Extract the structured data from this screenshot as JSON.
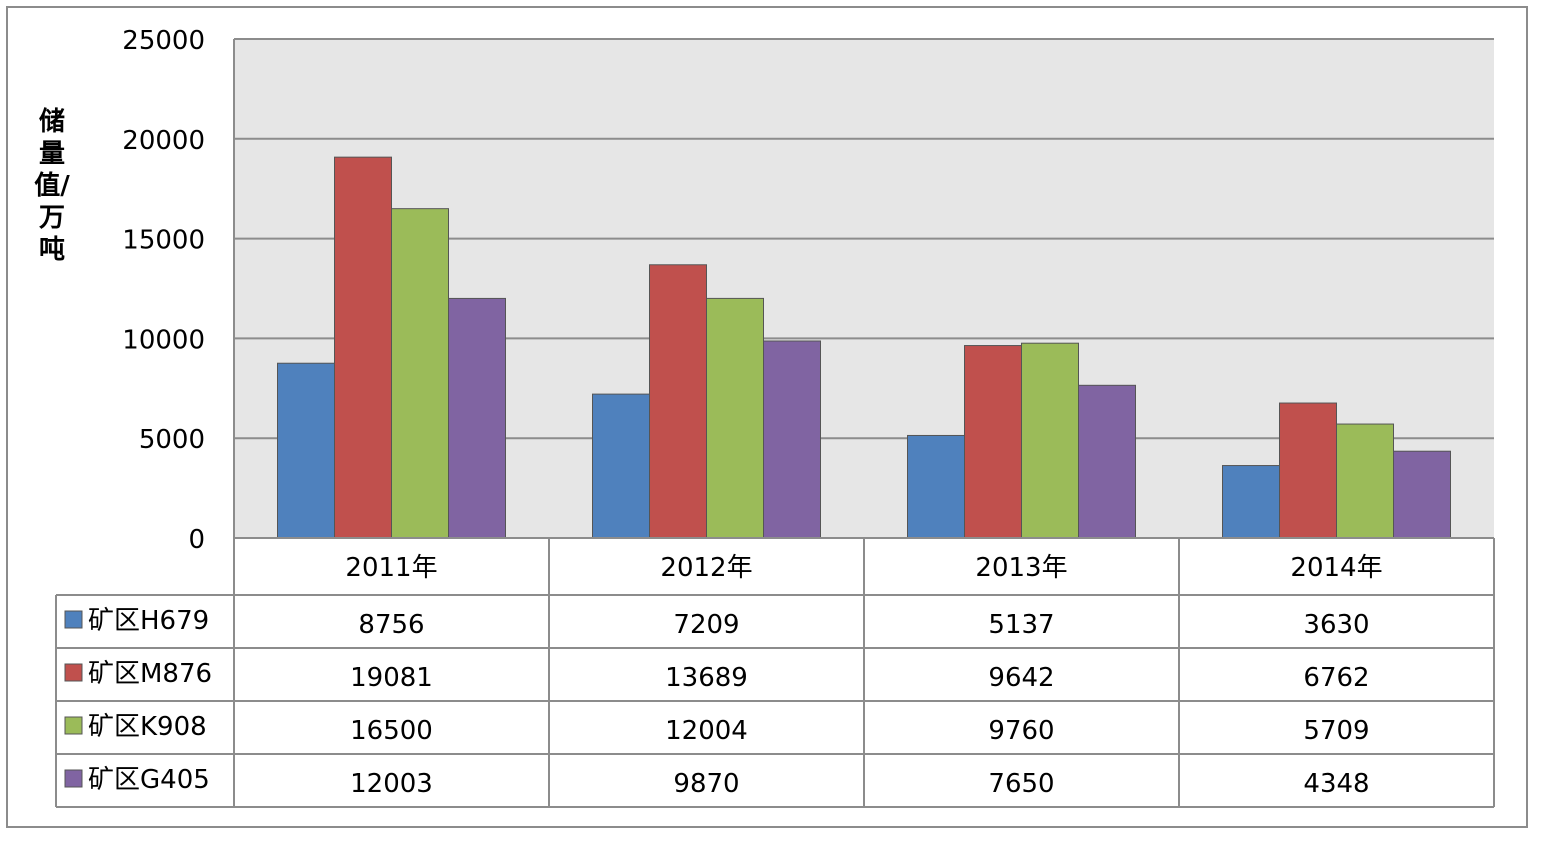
{
  "chart_data": {
    "type": "bar",
    "title": "",
    "xlabel": "",
    "ylabel": "储量值/万吨",
    "ylim": [
      0,
      25000
    ],
    "yticks": [
      "0",
      "5000",
      "10000",
      "15000",
      "20000",
      "25000"
    ],
    "categories": [
      "2011年",
      "2012年",
      "2013年",
      "2014年"
    ],
    "series": [
      {
        "name": "矿区H679",
        "color": "#4f81bd",
        "values": [
          8756,
          7209,
          5137,
          3630
        ]
      },
      {
        "name": "矿区M876",
        "color": "#c0504d",
        "values": [
          19081,
          13689,
          9642,
          6762
        ]
      },
      {
        "name": "矿区K908",
        "color": "#9bbb59",
        "values": [
          16500,
          12004,
          9760,
          5709
        ]
      },
      {
        "name": "矿区G405",
        "color": "#8064a2",
        "values": [
          12003,
          9870,
          7650,
          4348
        ]
      }
    ],
    "grid": true,
    "legend": "data-table",
    "plot_background": "#e6e6e6"
  }
}
